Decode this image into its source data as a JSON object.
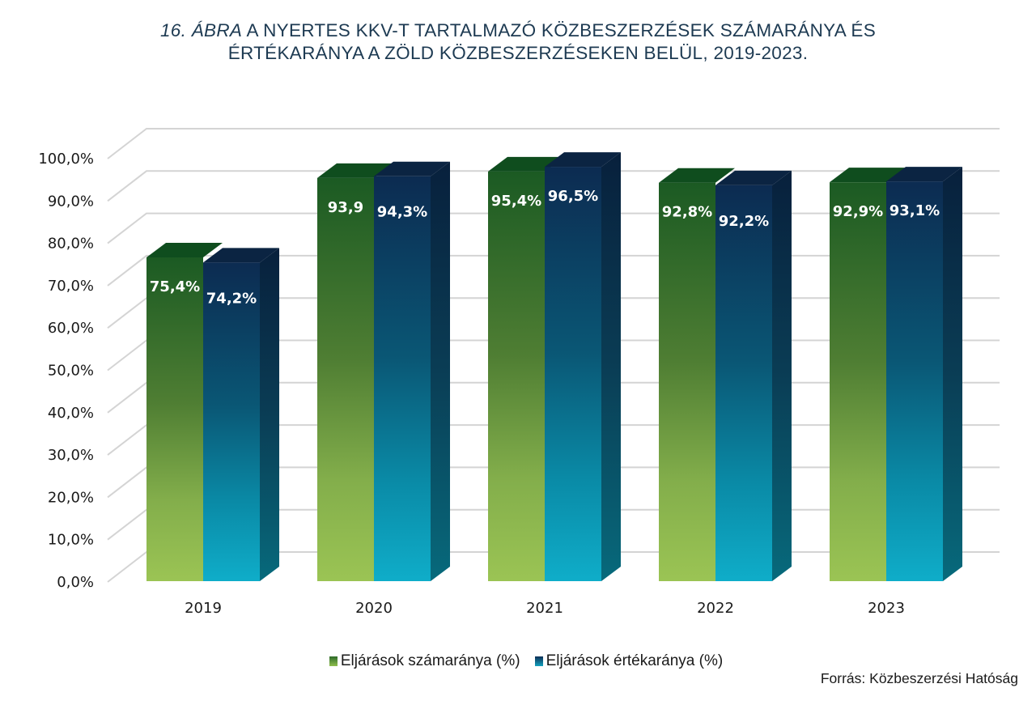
{
  "title": {
    "figure_label": "16. ÁBRA",
    "line1_rest": " A NYERTES KKV-T TARTALMAZÓ KÖZBESZERZÉSEK SZÁMARÁNYA ÉS",
    "line2": "ÉRTÉKARÁNYA A ZÖLD KÖZBESZERZÉSEKEN BELÜL, 2019-2023."
  },
  "source": "Forrás: Közbeszerzési Hatóság",
  "colors": {
    "green_top": "#0f4d1e",
    "green_grad_top": "#1c5a22",
    "green_grad_bottom": "#9bc454",
    "blue_top": "#0b2442",
    "blue_grad_top": "#0d2c52",
    "blue_grad_bottom": "#0fadc9",
    "title": "#1d3a52",
    "grid": "#d4d4d4"
  },
  "chart_data": {
    "type": "bar",
    "style": "3d-clustered-column",
    "title": "16. ÁBRA A NYERTES KKV-T TARTALMAZÓ KÖZBESZERZÉSEK SZÁMARÁNYA ÉS ÉRTÉKARÁNYA A ZÖLD KÖZBESZERZÉSEKEN BELÜL, 2019-2023.",
    "xlabel": "",
    "ylabel": "",
    "categories": [
      "2019",
      "2020",
      "2021",
      "2022",
      "2023"
    ],
    "series": [
      {
        "name": "Eljárások számaránya (%)",
        "values": [
          75.4,
          93.9,
          95.4,
          92.8,
          92.9
        ],
        "labels": [
          "75,4%",
          "93,9",
          "95,4%",
          "92,8%",
          "92,9%"
        ]
      },
      {
        "name": "Eljárások értékaránya (%)",
        "values": [
          74.2,
          94.3,
          96.5,
          92.2,
          93.1
        ],
        "labels": [
          "74,2%",
          "94,3%",
          "96,5%",
          "92,2%",
          "93,1%"
        ]
      }
    ],
    "ylim": [
      0,
      100
    ],
    "yticks": [
      0,
      10,
      20,
      30,
      40,
      50,
      60,
      70,
      80,
      90,
      100
    ],
    "ytick_labels": [
      "0,0%",
      "10,0%",
      "20,0%",
      "30,0%",
      "40,0%",
      "50,0%",
      "60,0%",
      "70,0%",
      "80,0%",
      "90,0%",
      "100,0%"
    ],
    "grid": true,
    "legend": "bottom-center",
    "legend_entries": [
      "Eljárások számaránya (%)",
      "Eljárások értékaránya (%)"
    ]
  }
}
